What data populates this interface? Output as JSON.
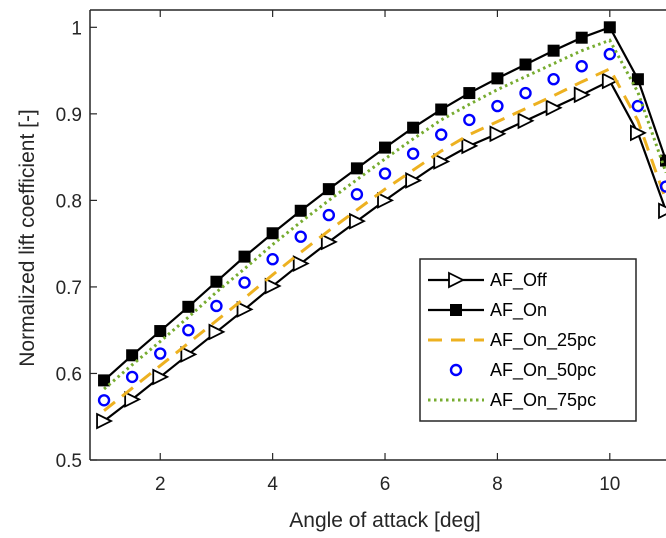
{
  "chart_data": {
    "type": "line",
    "title": "",
    "xlabel": "Angle of attack [deg]",
    "ylabel": "Normalized lift coefficient [-]",
    "xlim": [
      0.75,
      11
    ],
    "ylim": [
      0.5,
      1.02
    ],
    "xticks": [
      2,
      4,
      6,
      8,
      10
    ],
    "yticks": [
      0.5,
      0.6,
      0.7,
      0.8,
      0.9,
      1
    ],
    "ytick_labels": [
      "0.5",
      "0.6",
      "0.7",
      "0.8",
      "0.9",
      "1"
    ],
    "grid": false,
    "legend_position": "bottom-right",
    "x": [
      1,
      1.5,
      2,
      2.5,
      3,
      3.5,
      4,
      4.5,
      5,
      5.5,
      6,
      6.5,
      7,
      7.5,
      8,
      8.5,
      9,
      9.5,
      10,
      10.5,
      11
    ],
    "series": [
      {
        "name": "AF_Off",
        "color": "#000000",
        "line": "solid",
        "marker": "triangle-right",
        "values": [
          0.545,
          0.57,
          0.596,
          0.622,
          0.648,
          0.674,
          0.701,
          0.727,
          0.752,
          0.776,
          0.8,
          0.823,
          0.845,
          0.863,
          0.877,
          0.892,
          0.907,
          0.922,
          0.938,
          0.878,
          0.788
        ]
      },
      {
        "name": "AF_On",
        "color": "#000000",
        "line": "solid",
        "marker": "square",
        "values": [
          0.592,
          0.621,
          0.649,
          0.677,
          0.706,
          0.735,
          0.762,
          0.788,
          0.813,
          0.837,
          0.861,
          0.884,
          0.905,
          0.924,
          0.941,
          0.957,
          0.973,
          0.988,
          1.0,
          0.94,
          0.846
        ]
      },
      {
        "name": "AF_On_25pc",
        "color": "#EDB120",
        "line": "dashed",
        "marker": "none",
        "values": [
          0.557,
          0.583,
          0.609,
          0.635,
          0.661,
          0.687,
          0.714,
          0.74,
          0.765,
          0.789,
          0.813,
          0.835,
          0.857,
          0.876,
          0.891,
          0.906,
          0.921,
          0.937,
          0.952,
          0.892,
          0.8
        ]
      },
      {
        "name": "AF_On_50pc",
        "color": "#0000FF",
        "line": "none",
        "marker": "circle",
        "values": [
          0.569,
          0.596,
          0.623,
          0.65,
          0.678,
          0.705,
          0.732,
          0.758,
          0.783,
          0.807,
          0.831,
          0.854,
          0.876,
          0.893,
          0.909,
          0.924,
          0.94,
          0.955,
          0.969,
          0.909,
          0.816
        ]
      },
      {
        "name": "AF_On_75pc",
        "color": "#77AC30",
        "line": "dotted",
        "marker": "none",
        "values": [
          0.582,
          0.61,
          0.637,
          0.665,
          0.694,
          0.721,
          0.749,
          0.775,
          0.8,
          0.824,
          0.848,
          0.871,
          0.893,
          0.911,
          0.928,
          0.943,
          0.958,
          0.973,
          0.985,
          0.925,
          0.832
        ]
      }
    ]
  }
}
